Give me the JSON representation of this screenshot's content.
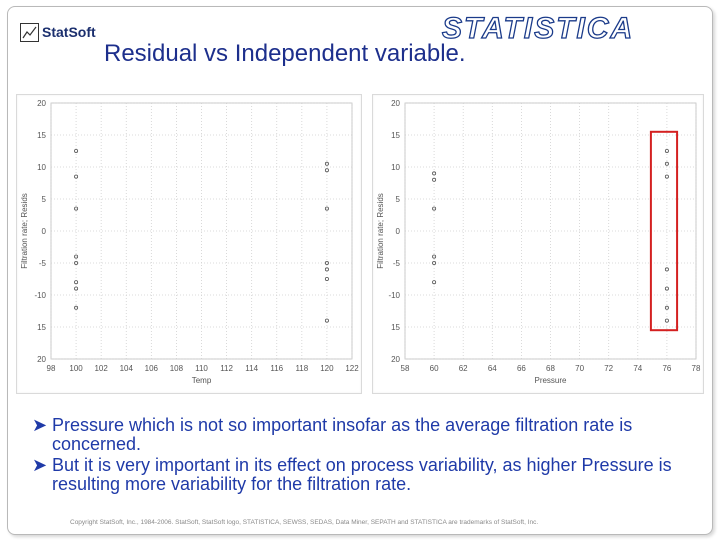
{
  "logo": {
    "text": "StatSoft"
  },
  "brand": {
    "text": "STATISTICA"
  },
  "title": "Residual vs Independent variable.",
  "bullets": [
    "Pressure which is not so important insofar as the average filtration rate is concerned.",
    "But it is very important in its effect on process variability, as higher Pressure is resulting more variability for the filtration rate."
  ],
  "footer": "Copyright StatSoft, Inc., 1984-2006. StatSoft, StatSoft logo, STATISTICA, SEWSS, SEDAS, Data Miner, SEPATH and STATISTICA are trademarks of StatSoft, Inc.",
  "chart_data": [
    {
      "type": "scatter",
      "xlabel": "Temp",
      "ylabel": "Filtration rate; Resids",
      "xlim": [
        98,
        122
      ],
      "ylim": [
        -20,
        20
      ],
      "xticks": [
        "98",
        "100",
        "102",
        "104",
        "106",
        "108",
        "110",
        "112",
        "114",
        "116",
        "118",
        "120",
        "122"
      ],
      "yticks": [
        "20",
        "15",
        "10",
        "5",
        "0",
        "-5",
        "-10",
        "15",
        "20"
      ],
      "grid": true,
      "points": [
        {
          "x": 100,
          "y": 12.5
        },
        {
          "x": 100,
          "y": 8.5
        },
        {
          "x": 100,
          "y": 3.5
        },
        {
          "x": 100,
          "y": -4
        },
        {
          "x": 100,
          "y": -5
        },
        {
          "x": 100,
          "y": -8
        },
        {
          "x": 100,
          "y": -9
        },
        {
          "x": 100,
          "y": -12
        },
        {
          "x": 120,
          "y": 10.5
        },
        {
          "x": 120,
          "y": 9.5
        },
        {
          "x": 120,
          "y": 3.5
        },
        {
          "x": 120,
          "y": -5
        },
        {
          "x": 120,
          "y": -6
        },
        {
          "x": 120,
          "y": -7.5
        },
        {
          "x": 120,
          "y": -14
        }
      ]
    },
    {
      "type": "scatter",
      "xlabel": "Pressure",
      "ylabel": "Filtration rate; Resids",
      "xlim": [
        58,
        78
      ],
      "ylim": [
        -20,
        20
      ],
      "xticks": [
        "58",
        "60",
        "62",
        "64",
        "66",
        "68",
        "70",
        "72",
        "74",
        "76",
        "78"
      ],
      "yticks": [
        "20",
        "15",
        "10",
        "5",
        "0",
        "-5",
        "-10",
        "15",
        "20"
      ],
      "grid": true,
      "highlight": {
        "x": [
          74.9,
          76.7
        ],
        "y": [
          -15.5,
          15.5
        ],
        "color": "#d42020"
      },
      "points": [
        {
          "x": 60,
          "y": 9
        },
        {
          "x": 60,
          "y": 8
        },
        {
          "x": 60,
          "y": 3.5
        },
        {
          "x": 60,
          "y": -4
        },
        {
          "x": 60,
          "y": -5
        },
        {
          "x": 60,
          "y": -8
        },
        {
          "x": 76,
          "y": 12.5
        },
        {
          "x": 76,
          "y": 10.5
        },
        {
          "x": 76,
          "y": 8.5
        },
        {
          "x": 76,
          "y": -6
        },
        {
          "x": 76,
          "y": -9
        },
        {
          "x": 76,
          "y": -12
        },
        {
          "x": 76,
          "y": -14
        }
      ]
    }
  ]
}
